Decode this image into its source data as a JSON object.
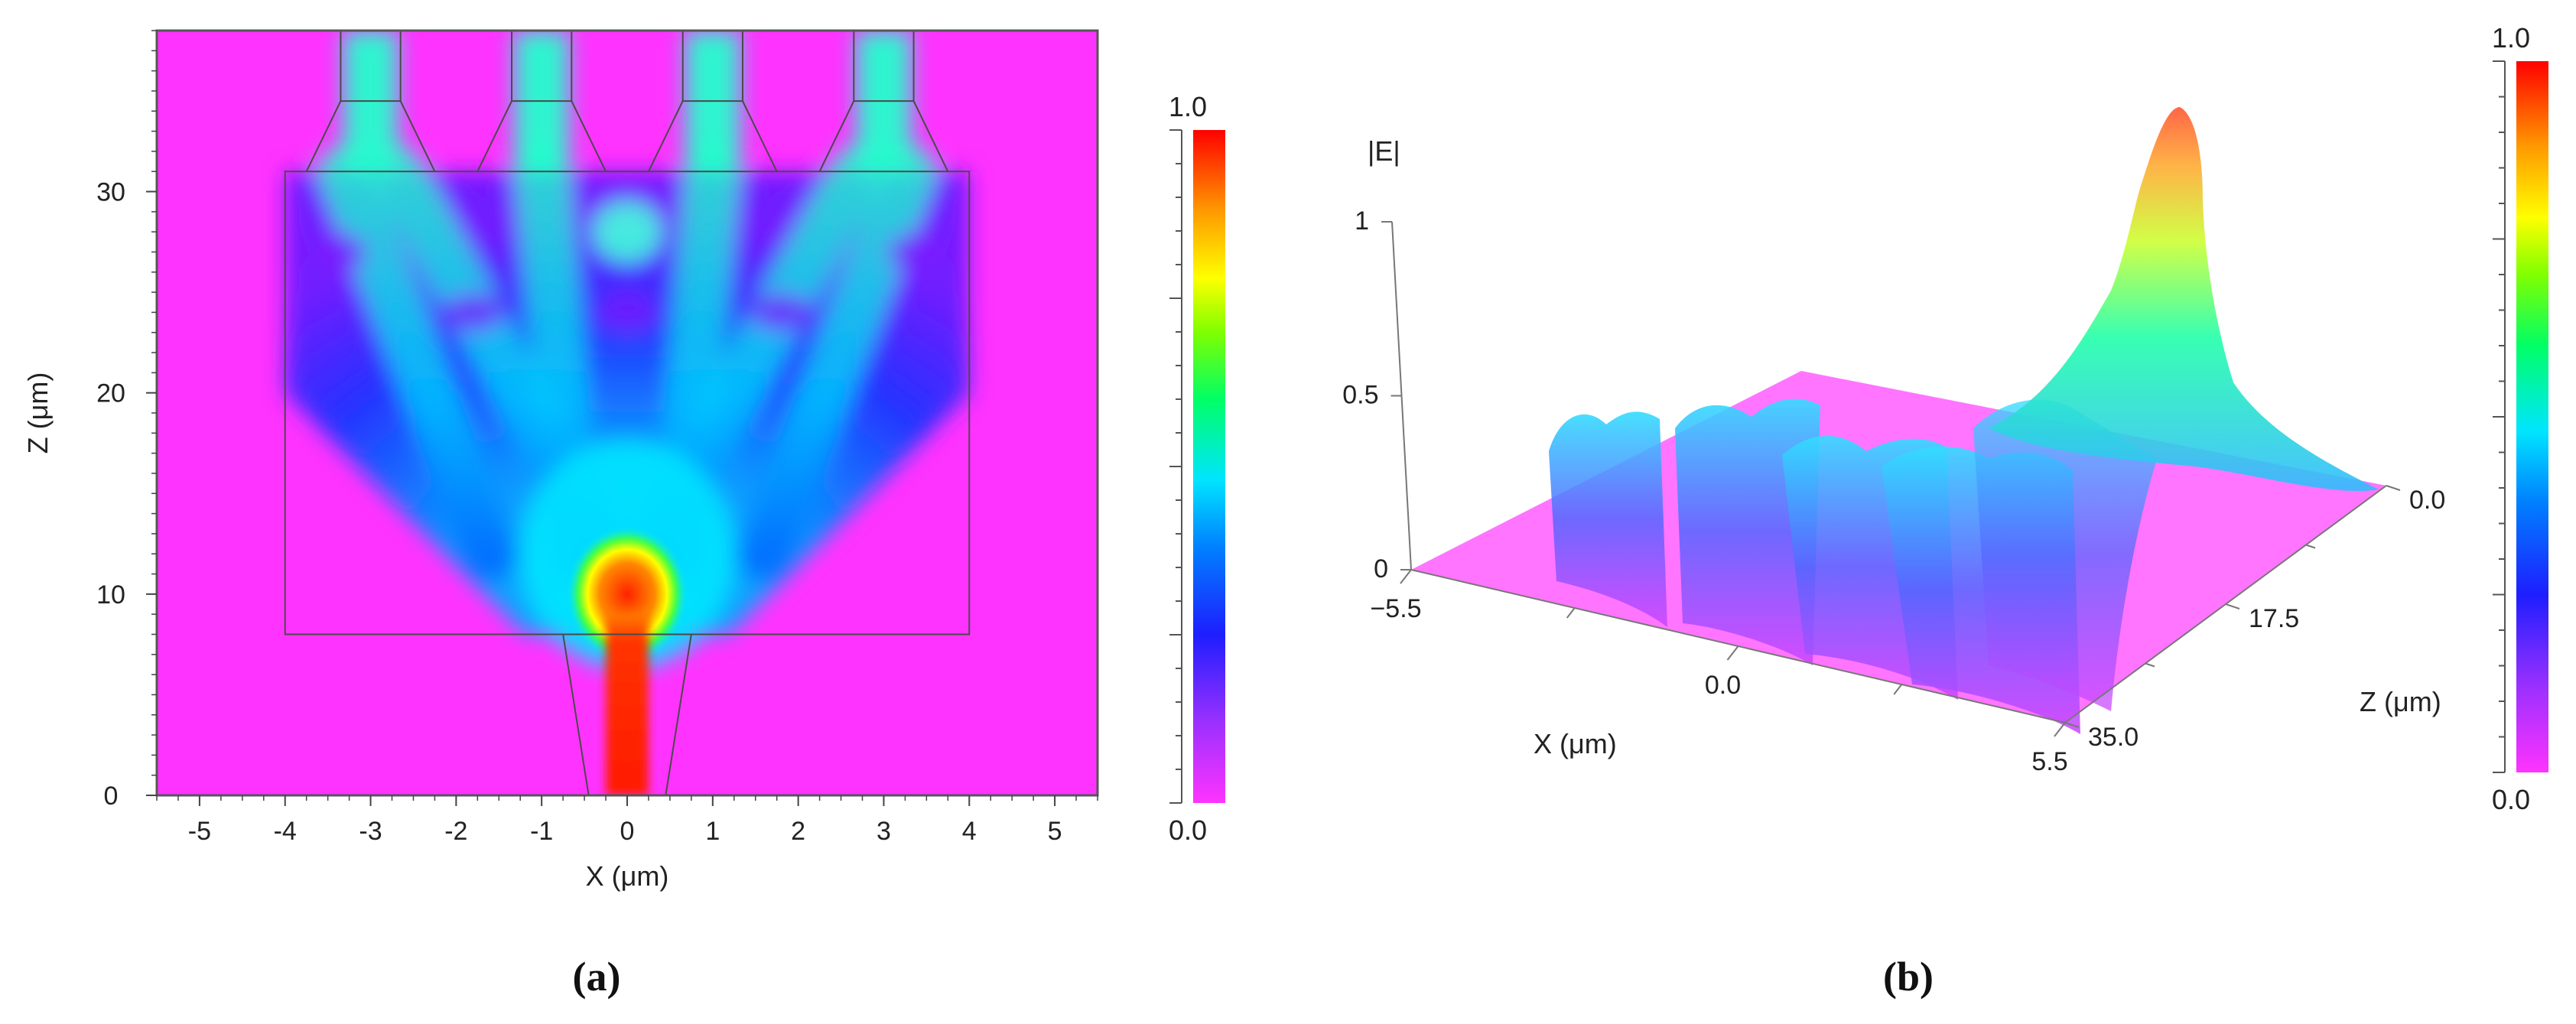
{
  "figure": {
    "panel_a_label": "(a)",
    "panel_b_label": "(b)"
  },
  "chart_data": [
    {
      "type": "heatmap",
      "panel": "(a)",
      "title": "",
      "xlabel": "X (μm)",
      "ylabel": "Z (μm)",
      "xlim": [
        -5.5,
        5.5
      ],
      "ylim": [
        0,
        38
      ],
      "x_ticks": [
        -5,
        -4,
        -3,
        -2,
        -1,
        0,
        1,
        2,
        3,
        4,
        5
      ],
      "y_ticks": [
        0,
        10,
        20,
        30
      ],
      "colorbar": {
        "min": 0.0,
        "max": 1.0,
        "min_label": "0.0",
        "max_label": "1.0",
        "colors": [
          "#ff33ff",
          "#8a2be2",
          "#0000ff",
          "#00bfff",
          "#00ffff",
          "#00ff00",
          "#ffff00",
          "#ff8c00",
          "#ff0000"
        ]
      },
      "input_waveguide": {
        "x_bottom": [
          -0.45,
          0.45
        ],
        "x_top": [
          -0.75,
          0.75
        ],
        "z": [
          0,
          8
        ],
        "peak_field": 1.0
      },
      "mmi_region": {
        "x": [
          -4.0,
          4.0
        ],
        "z": [
          8,
          31
        ]
      },
      "output_waveguides": [
        {
          "center_x": -3.0,
          "z": [
            31,
            38
          ]
        },
        {
          "center_x": -1.0,
          "z": [
            31,
            38
          ]
        },
        {
          "center_x": 1.0,
          "z": [
            31,
            38
          ]
        },
        {
          "center_x": 3.0,
          "z": [
            31,
            38
          ]
        }
      ]
    },
    {
      "type": "surface",
      "panel": "(b)",
      "zlabel": "|E|",
      "xlabel": "X (μm)",
      "ylabel": "Z (μm)",
      "x_range": [
        -5.5,
        5.5
      ],
      "z_range": [
        0.0,
        35.0
      ],
      "e_range": [
        0,
        1
      ],
      "x_tick_labels": [
        "−5.5",
        "0.0",
        "5.5"
      ],
      "z_tick_labels": [
        "0.0",
        "17.5",
        "35.0"
      ],
      "e_tick_labels": [
        "0",
        "0.5",
        "1"
      ],
      "colorbar": {
        "min": 0.0,
        "max": 1.0,
        "min_label": "0.0",
        "max_label": "1.0"
      }
    }
  ]
}
